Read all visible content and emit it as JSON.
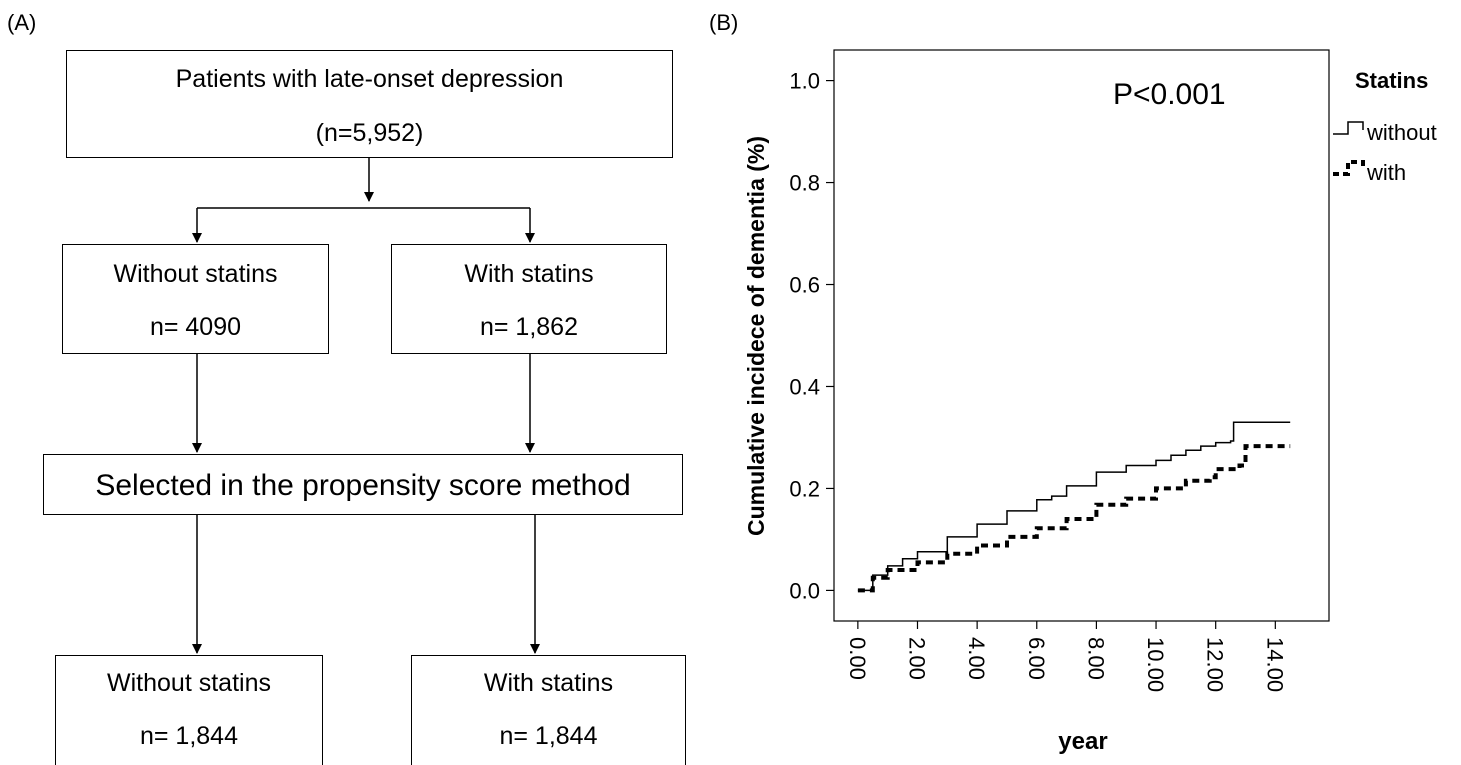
{
  "panel_a": {
    "label": "(A)",
    "top_box": {
      "line1": "Patients with late-onset depression",
      "line2": "(n=5,952)"
    },
    "left_box": {
      "line1": "Without statins",
      "line2": "n= 4090"
    },
    "right_box": {
      "line1": "With statins",
      "line2": "n= 1,862"
    },
    "psm_box": {
      "text": "Selected in the propensity score method"
    },
    "bottom_left_box": {
      "line1": "Without statins",
      "line2": "n= 1,844"
    },
    "bottom_right_box": {
      "line1": "With statins",
      "line2": "n= 1,844"
    }
  },
  "panel_b": {
    "label": "(B)"
  },
  "chart_data": {
    "type": "line",
    "title": "",
    "annotation": "P<0.001",
    "xlabel": "year",
    "ylabel": "Cumulative incidece of dementia (%)",
    "xlim": [
      -0.8,
      15.8
    ],
    "ylim": [
      -0.06,
      1.06
    ],
    "x_ticks": [
      0,
      2,
      4,
      6,
      8,
      10,
      12,
      14
    ],
    "x_tick_labels": [
      "0.00",
      "2.00",
      "4.00",
      "6.00",
      "8.00",
      "10.00",
      "12.00",
      "14.00"
    ],
    "y_ticks": [
      0,
      0.2,
      0.4,
      0.6,
      0.8,
      1.0
    ],
    "y_tick_labels": [
      "0.0",
      "0.2",
      "0.4",
      "0.6",
      "0.8",
      "1.0"
    ],
    "grid": false,
    "legend_title": "Statins",
    "legend_position": "right",
    "series": [
      {
        "name": "without",
        "style": "solid",
        "color": "#000000",
        "x": [
          0,
          0.5,
          1.0,
          1.5,
          2.0,
          3.0,
          4.0,
          5.0,
          6.0,
          6.5,
          7.0,
          8.0,
          9.0,
          10.0,
          10.5,
          11.0,
          11.5,
          12.0,
          12.5,
          12.6,
          13.0,
          14.0,
          14.5
        ],
        "y": [
          0,
          0.03,
          0.048,
          0.062,
          0.076,
          0.105,
          0.13,
          0.156,
          0.178,
          0.185,
          0.205,
          0.232,
          0.245,
          0.255,
          0.265,
          0.275,
          0.283,
          0.29,
          0.293,
          0.33,
          0.33,
          0.33,
          0.33
        ]
      },
      {
        "name": "with",
        "style": "dashed",
        "color": "#000000",
        "x": [
          0,
          0.5,
          1.0,
          2.0,
          3.0,
          4.0,
          5.0,
          6.0,
          7.0,
          8.0,
          9.0,
          10.0,
          11.0,
          11.8,
          12.0,
          12.8,
          13.0,
          14.0,
          14.5
        ],
        "y": [
          0,
          0.025,
          0.04,
          0.055,
          0.072,
          0.088,
          0.105,
          0.122,
          0.14,
          0.168,
          0.18,
          0.2,
          0.215,
          0.222,
          0.238,
          0.245,
          0.283,
          0.283,
          0.283
        ]
      }
    ]
  }
}
